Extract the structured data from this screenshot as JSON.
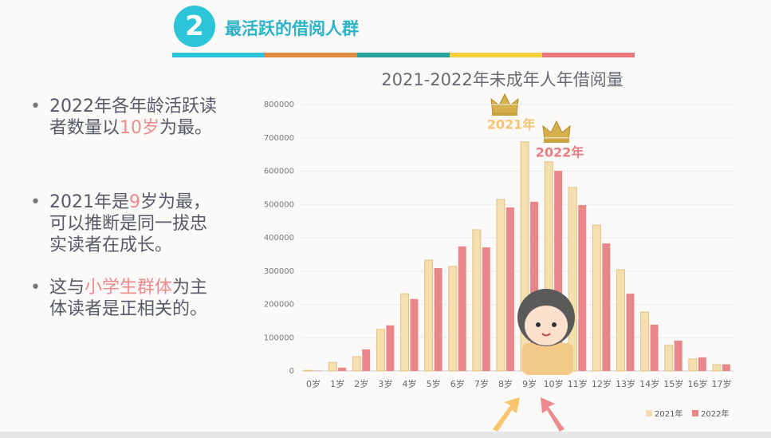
{
  "header": {
    "number": "2",
    "title": "最活跃的借阅人群"
  },
  "bullets": [
    [
      "2022年各年龄活跃读者数量以",
      "10岁",
      "为最。"
    ],
    [
      "2021年是",
      "9",
      "岁为最，可以推断是同一拔忠实读者在成长。"
    ],
    [
      "这与",
      "小学生群体",
      "为主体读者是正相关的。"
    ]
  ],
  "chart_data": {
    "type": "bar",
    "title": "2021-2022年未成年人年借阅量",
    "categories": [
      "0岁",
      "1岁",
      "2岁",
      "3岁",
      "4岁",
      "5岁",
      "6岁",
      "7岁",
      "8岁",
      "9岁",
      "10岁",
      "11岁",
      "12岁",
      "13岁",
      "14岁",
      "15岁",
      "16岁",
      "17岁"
    ],
    "series": [
      {
        "name": "2021年",
        "color": "#f6dfae",
        "values": [
          2000,
          26000,
          43000,
          125000,
          232000,
          333000,
          314000,
          424000,
          515000,
          688000,
          628000,
          551000,
          438000,
          304000,
          177000,
          77000,
          36000,
          19000
        ]
      },
      {
        "name": "2022年",
        "color": "#e8868a",
        "values": [
          1000,
          10000,
          65000,
          137000,
          216000,
          309000,
          374000,
          371000,
          491000,
          508000,
          601000,
          498000,
          383000,
          232000,
          139000,
          91000,
          41000,
          20000
        ]
      }
    ],
    "ylim": [
      0,
      800000
    ],
    "yticks": [
      0,
      100000,
      200000,
      300000,
      400000,
      500000,
      600000,
      700000,
      800000
    ],
    "grid": true,
    "legend": "bottom-right",
    "annotations": [
      "2021年",
      "2022年"
    ]
  }
}
